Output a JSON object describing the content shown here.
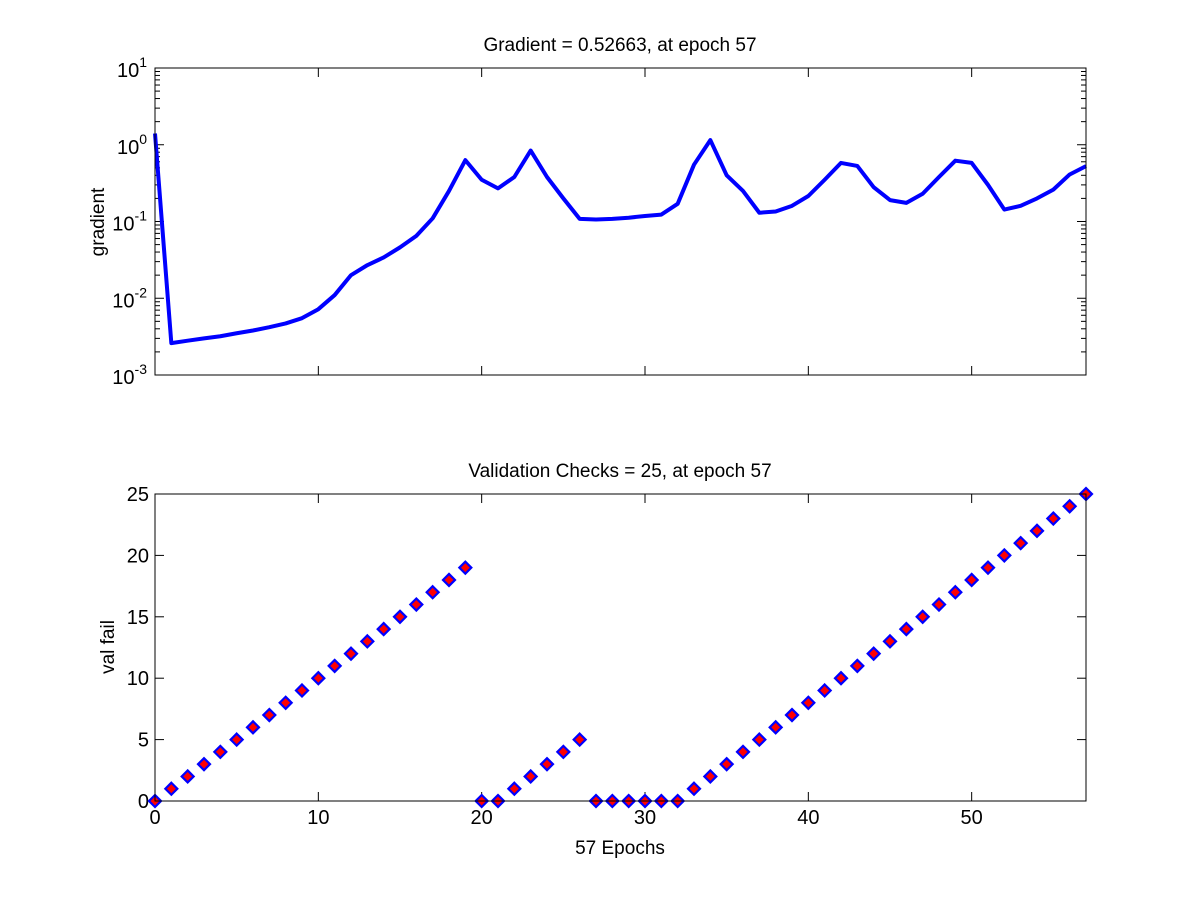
{
  "chart_data": [
    {
      "type": "line",
      "title": "Gradient = 0.52663, at epoch 57",
      "xlabel": "",
      "ylabel": "gradient",
      "xlim": [
        0,
        57
      ],
      "ylim": [
        0.001,
        10
      ],
      "yscale": "log",
      "xticks": [
        0,
        10,
        20,
        30,
        40,
        50
      ],
      "yticks": [
        {
          "base": "10",
          "exp": "-3",
          "value": 0.001
        },
        {
          "base": "10",
          "exp": "-2",
          "value": 0.01
        },
        {
          "base": "10",
          "exp": "-1",
          "value": 0.1
        },
        {
          "base": "10",
          "exp": "0",
          "value": 1
        },
        {
          "base": "10",
          "exp": "1",
          "value": 10
        }
      ],
      "grid": false,
      "series": [
        {
          "color": "#0000ff",
          "x": [
            0,
            1,
            2,
            3,
            4,
            5,
            6,
            7,
            8,
            9,
            10,
            11,
            12,
            13,
            14,
            15,
            16,
            17,
            18,
            19,
            20,
            21,
            22,
            23,
            24,
            25,
            26,
            27,
            28,
            29,
            30,
            31,
            32,
            33,
            34,
            35,
            36,
            37,
            38,
            39,
            40,
            41,
            42,
            43,
            44,
            45,
            46,
            47,
            48,
            49,
            50,
            51,
            52,
            53,
            54,
            55,
            56,
            57
          ],
          "y": [
            1.4,
            0.0026,
            0.0028,
            0.003,
            0.0032,
            0.0035,
            0.0038,
            0.0042,
            0.0047,
            0.0055,
            0.0072,
            0.011,
            0.02,
            0.027,
            0.034,
            0.046,
            0.065,
            0.11,
            0.25,
            0.63,
            0.35,
            0.27,
            0.38,
            0.84,
            0.38,
            0.2,
            0.108,
            0.106,
            0.108,
            0.112,
            0.118,
            0.123,
            0.17,
            0.55,
            1.15,
            0.4,
            0.25,
            0.13,
            0.135,
            0.16,
            0.215,
            0.35,
            0.58,
            0.53,
            0.28,
            0.19,
            0.175,
            0.23,
            0.38,
            0.62,
            0.58,
            0.3,
            0.143,
            0.16,
            0.2,
            0.26,
            0.41,
            0.52663
          ]
        }
      ]
    },
    {
      "type": "scatter",
      "title": "Validation Checks = 25, at epoch 57",
      "xlabel": "57 Epochs",
      "ylabel": "val fail",
      "xlim": [
        0,
        57
      ],
      "ylim": [
        0,
        25
      ],
      "xticks": [
        0,
        10,
        20,
        30,
        40,
        50
      ],
      "yticks": [
        0,
        5,
        10,
        15,
        20,
        25
      ],
      "grid": false,
      "marker": {
        "shape": "diamond",
        "fill": "#ff0000",
        "edge": "#0000ff"
      },
      "series": [
        {
          "x": [
            0,
            1,
            2,
            3,
            4,
            5,
            6,
            7,
            8,
            9,
            10,
            11,
            12,
            13,
            14,
            15,
            16,
            17,
            18,
            19,
            20,
            21,
            22,
            23,
            24,
            25,
            26,
            27,
            28,
            29,
            30,
            31,
            32,
            33,
            34,
            35,
            36,
            37,
            38,
            39,
            40,
            41,
            42,
            43,
            44,
            45,
            46,
            47,
            48,
            49,
            50,
            51,
            52,
            53,
            54,
            55,
            56,
            57
          ],
          "y": [
            0,
            1,
            2,
            3,
            4,
            5,
            6,
            7,
            8,
            9,
            10,
            11,
            12,
            13,
            14,
            15,
            16,
            17,
            18,
            19,
            0,
            0,
            1,
            2,
            3,
            4,
            5,
            0,
            0,
            0,
            0,
            0,
            0,
            1,
            2,
            3,
            4,
            5,
            6,
            7,
            8,
            9,
            10,
            11,
            12,
            13,
            14,
            15,
            16,
            17,
            18,
            19,
            20,
            21,
            22,
            23,
            24,
            25
          ]
        }
      ]
    }
  ]
}
